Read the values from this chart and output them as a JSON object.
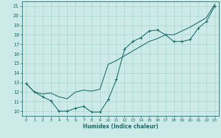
{
  "xlabel": "Humidex (Indice chaleur)",
  "bg_color": "#cceae7",
  "grid_color": "#aad4d0",
  "line_color": "#1a6b6b",
  "xlim": [
    -0.5,
    23.5
  ],
  "ylim": [
    9.5,
    21.5
  ],
  "xticks": [
    0,
    1,
    2,
    3,
    4,
    5,
    6,
    7,
    8,
    9,
    10,
    11,
    12,
    13,
    14,
    15,
    16,
    17,
    18,
    19,
    20,
    21,
    22,
    23
  ],
  "yticks": [
    10,
    11,
    12,
    13,
    14,
    15,
    16,
    17,
    18,
    19,
    20,
    21
  ],
  "line1_x": [
    0,
    1,
    2,
    3,
    4,
    5,
    6,
    7,
    8,
    9,
    10,
    11,
    12,
    13,
    14,
    15,
    16,
    17,
    18,
    19,
    20,
    21,
    22,
    23
  ],
  "line1_y": [
    12.9,
    12.0,
    11.5,
    11.1,
    10.0,
    10.0,
    10.3,
    10.5,
    9.9,
    9.9,
    11.2,
    13.3,
    16.5,
    17.3,
    17.7,
    18.4,
    18.5,
    18.0,
    17.3,
    17.3,
    17.5,
    18.7,
    19.4,
    21.0
  ],
  "line2_x": [
    0,
    1,
    2,
    3,
    4,
    5,
    6,
    7,
    8,
    9,
    10,
    11,
    12,
    13,
    14,
    15,
    16,
    17,
    18,
    19,
    20,
    21,
    22,
    23
  ],
  "line2_y": [
    12.9,
    12.0,
    11.8,
    11.9,
    11.5,
    11.3,
    12.0,
    12.2,
    12.1,
    12.3,
    14.9,
    15.3,
    15.8,
    16.3,
    16.8,
    17.3,
    17.6,
    18.0,
    18.0,
    18.4,
    18.8,
    19.3,
    19.8,
    21.2
  ]
}
